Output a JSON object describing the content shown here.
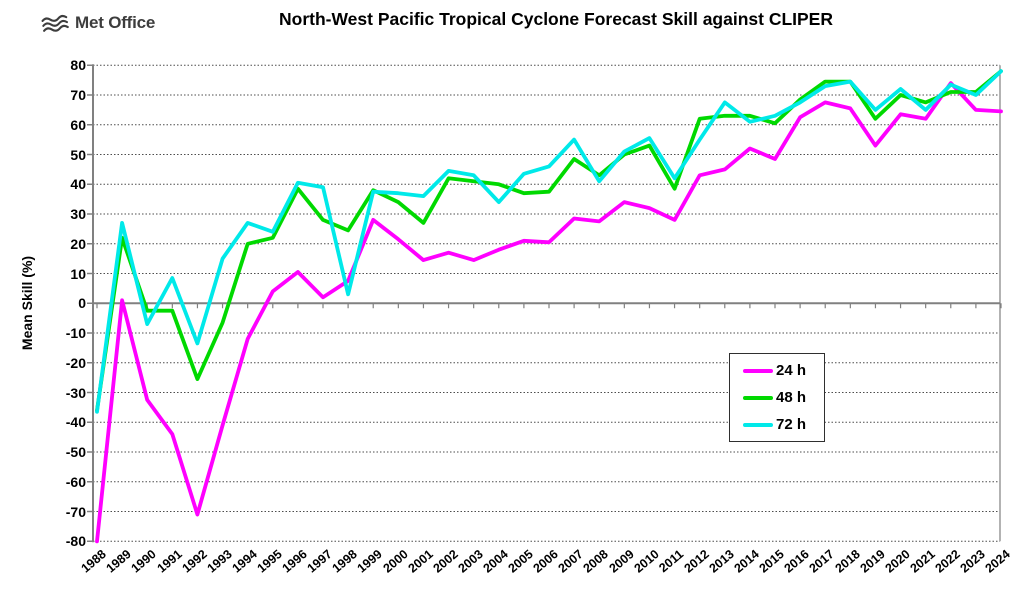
{
  "logo": {
    "brand": "Met Office",
    "icon": "met-office-waves-icon"
  },
  "chart_data": {
    "type": "line",
    "title": "North-West Pacific Tropical Cyclone Forecast Skill against CLIPER",
    "xlabel": "",
    "ylabel": "Mean Skill (%)",
    "ylim": [
      -80,
      80
    ],
    "ytick_step": 10,
    "yticks": [
      -80,
      -70,
      -60,
      -50,
      -40,
      -30,
      -20,
      -10,
      0,
      10,
      20,
      30,
      40,
      50,
      60,
      70,
      80
    ],
    "grid": "horizontal dotted lines every 10, solid heavier line at 0",
    "legend_position": "inside middle-right",
    "categories": [
      "1988",
      "1989",
      "1990",
      "1991",
      "1992",
      "1993",
      "1994",
      "1995",
      "1996",
      "1997",
      "1998",
      "1999",
      "2000",
      "2001",
      "2002",
      "2003",
      "2004",
      "2005",
      "2006",
      "2007",
      "2008",
      "2009",
      "2010",
      "2011",
      "2012",
      "2013",
      "2014",
      "2015",
      "2016",
      "2017",
      "2018",
      "2019",
      "2020",
      "2021",
      "2022",
      "2023",
      "2024"
    ],
    "series": [
      {
        "name": "24 h",
        "color": "#FF00FF",
        "values": [
          -80,
          1,
          -32.5,
          -44,
          -71,
          -41,
          -12,
          4,
          10.5,
          2,
          7.5,
          28,
          21.5,
          14.5,
          17,
          14.5,
          18,
          21,
          20.5,
          28.5,
          27.5,
          34,
          32,
          28,
          43,
          45,
          52,
          48.5,
          62.5,
          67.5,
          65.5,
          53,
          63.5,
          62,
          74,
          65,
          64.5
        ]
      },
      {
        "name": "48 h",
        "color": "#00D900",
        "values": [
          -36,
          22,
          -2.5,
          -2.5,
          -25.5,
          -6.5,
          20,
          22,
          38.5,
          28,
          24.5,
          38,
          34,
          27,
          42,
          41,
          40,
          37,
          37.5,
          48.5,
          43,
          50,
          53,
          38.5,
          62,
          63,
          63,
          60.5,
          68.5,
          74.5,
          74.5,
          62,
          70,
          67.5,
          71,
          71,
          78
        ]
      },
      {
        "name": "72 h",
        "color": "#00E9E9",
        "values": [
          -36.5,
          27,
          -7,
          8.5,
          -13.5,
          15,
          27,
          24,
          40.5,
          39,
          3,
          37.5,
          37,
          36,
          44.5,
          43,
          34,
          43.5,
          46,
          55,
          41,
          51,
          55.5,
          42,
          55,
          67.5,
          61,
          63,
          67.5,
          73,
          74.5,
          65,
          72,
          65,
          73.5,
          70,
          78
        ]
      }
    ]
  }
}
